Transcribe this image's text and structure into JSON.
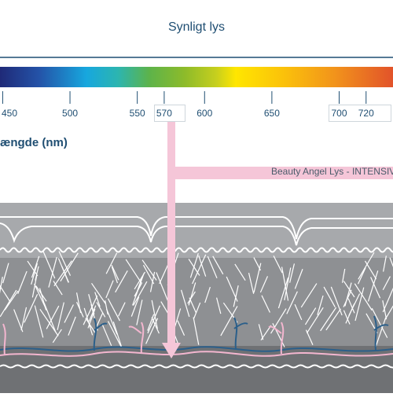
{
  "title": "Synligt lys",
  "wavelength_label": "ængde (nm)",
  "beam_label": "Beauty Angel Lys - INTENSIV",
  "scale": {
    "min_nm": 448,
    "max_nm": 740,
    "ticks": [
      {
        "value": 450,
        "label": "450"
      },
      {
        "value": 500,
        "label": "500"
      },
      {
        "value": 550,
        "label": "550"
      },
      {
        "value": 570,
        "label": "570"
      },
      {
        "value": 600,
        "label": "600"
      },
      {
        "value": 650,
        "label": "650"
      },
      {
        "value": 700,
        "label": "700"
      },
      {
        "value": 720,
        "label": "720"
      }
    ]
  },
  "colors": {
    "text": "#1f4e72",
    "axis": "#1f4e72",
    "beam": "#f5c6d8",
    "skin_light": "#a7a9ac",
    "skin_mid": "#8e9093",
    "skin_dark": "#6f7174",
    "fibers": "#ffffff",
    "vessel_blue": "#2b5f8a",
    "vessel_pink": "#f3b6cf"
  }
}
